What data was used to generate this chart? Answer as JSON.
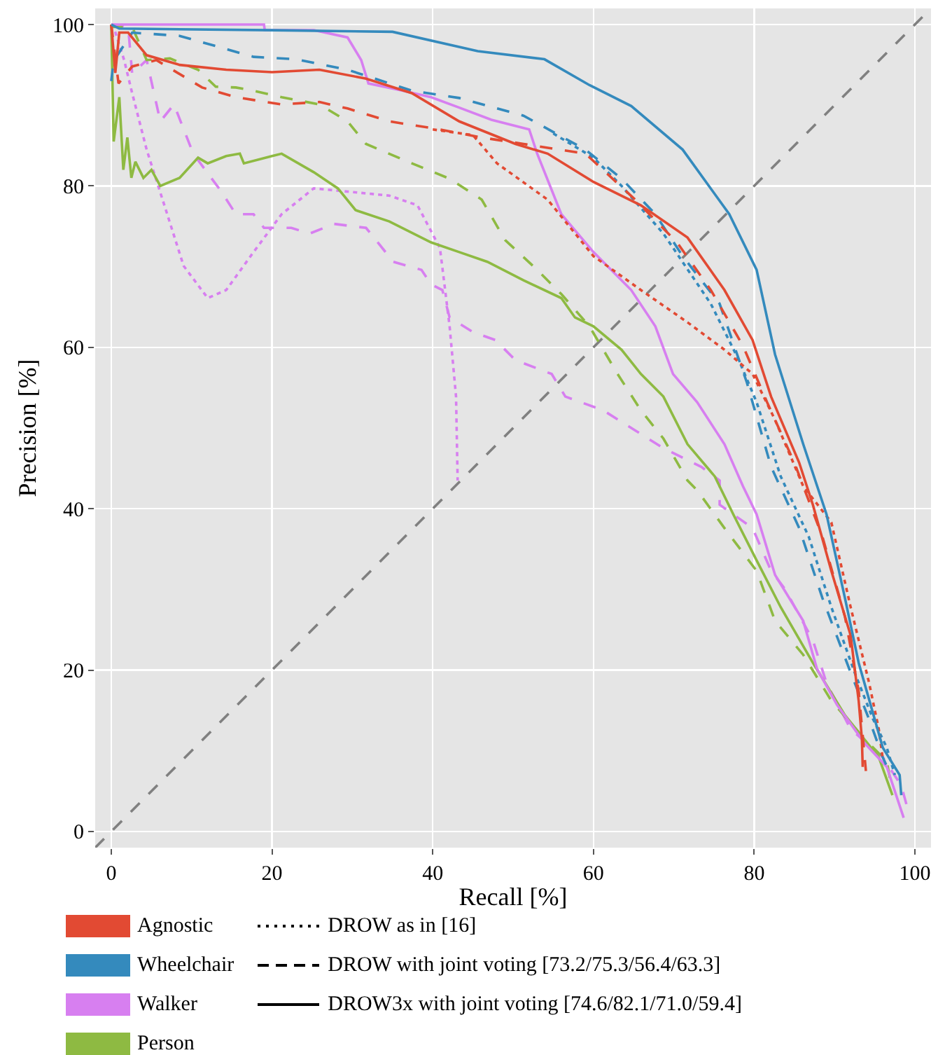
{
  "chart_data": {
    "type": "line",
    "xlabel": "Recall [%]",
    "ylabel": "Precision [%]",
    "xlim": [
      -2,
      102
    ],
    "ylim": [
      -2,
      102
    ],
    "xticks": [
      0,
      20,
      40,
      60,
      80,
      100
    ],
    "yticks": [
      0,
      20,
      40,
      60,
      80,
      100
    ],
    "grid": true,
    "legend": "bottom",
    "series": [
      {
        "color": "#808080",
        "line_style": "dashed",
        "x": [
          -2,
          102
        ],
        "values": [
          -2,
          102
        ]
      },
      {
        "color": "#d77ff0",
        "line_style": "dotted",
        "x": [
          0,
          0.3,
          1.6,
          2.6,
          4.4,
          6.8,
          9,
          12,
          14.3,
          17.7,
          21.2,
          25.2,
          29.4,
          34.6,
          38.1,
          40.9,
          42.1,
          42.9,
          43.1
        ],
        "values": [
          100,
          99.7,
          95.6,
          91.5,
          84.5,
          77,
          70.1,
          66.1,
          67.1,
          71.8,
          76.5,
          79.7,
          79.3,
          78.8,
          77.6,
          72.3,
          62.6,
          53.9,
          43.5
        ]
      },
      {
        "color": "#d77ff0",
        "line_style": "dashed",
        "x": [
          0,
          2.1,
          2.6,
          4.4,
          6.1,
          7.8,
          10.2,
          13.7,
          15.5,
          17.7,
          19,
          22.4,
          24.7,
          27.7,
          31.7,
          35.1,
          38.6,
          39.8,
          41.2,
          42.1,
          45,
          47.8,
          50.3,
          54.8,
          56.5,
          61.2,
          65.2,
          68.7,
          73.4,
          75.7,
          75.7,
          79.8,
          82.1,
          83.8,
          87.3,
          89,
          92,
          96,
          98.3,
          99.1
        ],
        "values": [
          100,
          99.7,
          93.9,
          95.6,
          88,
          90.1,
          84,
          79.3,
          76.5,
          76.5,
          74.8,
          74.8,
          74.1,
          75.3,
          74.8,
          70.6,
          69.6,
          67.8,
          67.1,
          63.7,
          61.9,
          60.9,
          58.4,
          56.7,
          53.9,
          52.2,
          49.7,
          47.5,
          45.2,
          43.5,
          40.5,
          37.6,
          32.3,
          30.1,
          23.7,
          18.4,
          12.7,
          9.2,
          5.7,
          2.8
        ]
      },
      {
        "color": "#8eba42",
        "line_style": "dashed",
        "x": [
          0,
          0.3,
          2.6,
          4.4,
          7.3,
          10.8,
          13,
          15.5,
          17.7,
          21.2,
          25.9,
          29.4,
          31.7,
          37.4,
          42.1,
          46.1,
          49,
          53,
          56,
          59.5,
          63,
          65.9,
          68.7,
          71.7,
          72.9,
          76.3,
          80.3,
          82.6,
          86.1,
          89.6,
          93.7,
          96.5,
          97
        ],
        "values": [
          100,
          99.7,
          99.7,
          95.6,
          95.8,
          94.4,
          92.3,
          92.2,
          91.8,
          91,
          90.1,
          88,
          85.2,
          82.8,
          80.9,
          78.3,
          73.3,
          69.6,
          66.6,
          62.6,
          56.7,
          52.2,
          48.7,
          43.5,
          42.3,
          37.6,
          32.3,
          26.1,
          21.9,
          16.2,
          11.5,
          8.7,
          6
        ]
      },
      {
        "color": "#8eba42",
        "line_style": "solid",
        "x": [
          0,
          0.3,
          1,
          1.5,
          2,
          2.5,
          3,
          4,
          5,
          6.1,
          8.5,
          10.8,
          12,
          14.3,
          16,
          16.5,
          20,
          21.2,
          25.2,
          28.2,
          30.4,
          34.6,
          39.8,
          43.3,
          46.8,
          51.3,
          56,
          57.7,
          60,
          63.5,
          65.9,
          68.7,
          71.7,
          75.1,
          77.4,
          80.3,
          83.3,
          87.3,
          91.3,
          95.5,
          97.2
        ],
        "values": [
          100,
          85.5,
          91,
          82,
          86,
          81,
          83,
          81,
          82,
          80,
          81,
          83.5,
          82.8,
          83.7,
          84,
          82.8,
          83.7,
          84,
          81.7,
          79.7,
          77,
          75.6,
          73,
          71.8,
          70.6,
          68.3,
          66.1,
          63.7,
          62.6,
          59.7,
          56.7,
          53.9,
          48,
          44,
          39.3,
          33.6,
          27.8,
          20.9,
          14.4,
          9.2,
          4.5
        ]
      },
      {
        "color": "#d77ff0",
        "line_style": "solid",
        "x": [
          0,
          19,
          19.1,
          25.2,
          29.4,
          31.1,
          32,
          36.3,
          39.8,
          43.3,
          47.3,
          52,
          53,
          56,
          60,
          64.7,
          67.7,
          69.9,
          72.9,
          76.3,
          78.6,
          80.3,
          82.6,
          86.1,
          87.8,
          90.3,
          93.7,
          96.5,
          98.6
        ],
        "values": [
          100,
          100,
          99.3,
          99.3,
          98.4,
          95.6,
          92.7,
          91.8,
          91,
          89.7,
          88.2,
          87,
          84,
          76.5,
          71.8,
          67.1,
          62.6,
          56.7,
          53.2,
          48,
          42.8,
          39.3,
          31.8,
          26.1,
          20.2,
          15.7,
          11,
          8,
          1.7
        ]
      },
      {
        "color": "#348abd",
        "line_style": "dotted",
        "x": [
          55,
          60,
          63.5,
          68.7,
          74.6,
          78.1,
          80.3,
          83.3,
          86.8,
          89.6,
          92.5,
          94.8,
          96.5,
          97.5
        ],
        "values": [
          86.5,
          83.5,
          80,
          74.1,
          65.4,
          58.4,
          53.2,
          44,
          36.5,
          27.8,
          19.7,
          13.9,
          10.4,
          7
        ]
      },
      {
        "color": "#348abd",
        "line_style": "dashed",
        "x": [
          0,
          0.3,
          2.6,
          8.5,
          17.7,
          23,
          29.4,
          37.4,
          43.3,
          51.3,
          59,
          63.5,
          67.7,
          71.1,
          75.7,
          79.1,
          82.1,
          85.6,
          88.5,
          92,
          94.3,
          96,
          97
        ],
        "values": [
          93,
          95.5,
          99,
          98.6,
          96,
          95.7,
          94.4,
          91.8,
          90.9,
          88.7,
          84.5,
          80.9,
          76.5,
          71.3,
          65.4,
          55.6,
          45.2,
          37.6,
          28.9,
          19.7,
          13.9,
          9.2,
          7
        ]
      },
      {
        "color": "#e24a33",
        "line_style": "dotted",
        "x": [
          40,
          45,
          48,
          54.3,
          60,
          65.9,
          71.7,
          76.3,
          79.8,
          82.6,
          86.1,
          89.6,
          92,
          94.3,
          95.5,
          96
        ],
        "values": [
          87,
          86.3,
          82.8,
          78.3,
          71.3,
          67.1,
          63.1,
          59.7,
          56.7,
          51,
          42.8,
          38.3,
          27.8,
          18.4,
          12.7,
          9
        ]
      },
      {
        "color": "#e24a33",
        "line_style": "dashed",
        "x": [
          0,
          0.9,
          2.6,
          5.6,
          11.3,
          15.5,
          21.2,
          25.9,
          29.4,
          34.6,
          40.3,
          46.1,
          51.3,
          59,
          65.2,
          70.4,
          74.6,
          78.6,
          81.6,
          85,
          88.5,
          91.3,
          93,
          93.9
        ],
        "values": [
          100,
          92.7,
          94.8,
          95.6,
          92.2,
          91,
          90.1,
          90.4,
          89.6,
          88,
          87.1,
          86,
          85.2,
          84,
          78.3,
          73,
          67.1,
          60.2,
          53.2,
          45.7,
          36.5,
          26.6,
          17.4,
          7.5
        ]
      },
      {
        "color": "#e24a33",
        "line_style": "solid",
        "x": [
          0,
          0.5,
          1,
          2.1,
          4.4,
          8.5,
          14.3,
          20,
          25.9,
          31.7,
          37.4,
          43.3,
          50.3,
          54.3,
          60,
          65.9,
          71.7,
          76.3,
          79.8,
          82.1,
          85.6,
          87.3,
          89.6,
          92,
          93,
          93.4,
          93.5
        ],
        "values": [
          100,
          94,
          99,
          99,
          96.2,
          95,
          94.4,
          94.1,
          94.4,
          93.3,
          91.5,
          88,
          85.2,
          84,
          80.5,
          77.6,
          73.6,
          67.1,
          60.9,
          53.9,
          45.7,
          40.5,
          32.3,
          24.3,
          16.2,
          11.5,
          8
        ]
      },
      {
        "color": "#348abd",
        "line_style": "solid",
        "x": [
          0,
          1,
          20,
          35,
          45.6,
          53.9,
          59.5,
          64.7,
          71.1,
          76.9,
          80.3,
          82.6,
          86.1,
          89,
          91.3,
          93,
          96,
          98.1,
          98.3
        ],
        "values": [
          100,
          99.5,
          99.3,
          99.1,
          96.7,
          95.7,
          92.5,
          89.9,
          84.5,
          76.5,
          69.6,
          59.1,
          48,
          39.3,
          28.9,
          20.9,
          10.4,
          7,
          4.5
        ]
      },
      {
        "type": "bar",
        "name": "Agnostic",
        "color": "#e24a33"
      },
      {
        "name": "DROW as in [16]",
        "color": "#000000",
        "line_style": "dotted"
      },
      {
        "type": "bar",
        "name": "Wheelchair",
        "color": "#348abd"
      },
      {
        "name": "DROW with joint voting [73.2/75.3/56.4/63.3]",
        "color": "#000000",
        "line_style": "dashed"
      },
      {
        "type": "bar",
        "name": "Walker",
        "color": "#d77ff0"
      },
      {
        "name": "DROW3x with joint voting [74.6/82.1/71.0/59.4]",
        "color": "#000000",
        "line_style": "solid"
      },
      {
        "type": "bar",
        "name": "Person",
        "color": "#8eba42"
      }
    ]
  }
}
